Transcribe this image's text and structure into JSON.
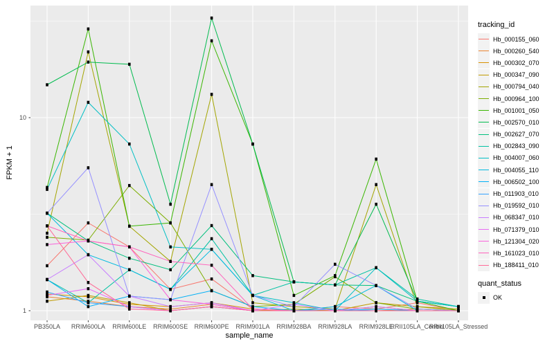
{
  "chart_data": {
    "type": "line",
    "title": "",
    "xlabel": "sample_name",
    "ylabel": "FPKM + 1",
    "yscale": "log10",
    "ylim": [
      0.89,
      38.0
    ],
    "yticks": [
      {
        "value": 1,
        "label": "1"
      },
      {
        "value": 10,
        "label": "10"
      }
    ],
    "minor_breaks": [
      3.1623,
      31.623
    ],
    "grid": true,
    "legend_position": "right",
    "legend_title": "tracking_id",
    "quant_legend": {
      "title": "quant_status",
      "items": [
        {
          "label": "OK",
          "marker": "black-square"
        }
      ]
    },
    "point_marker": "black-square",
    "panel_bg": "#EBEBEB",
    "grid_color": "#FFFFFF",
    "axis_text_color": "#4D4D4D",
    "categories": [
      "PB350LA",
      "RRIM600LA",
      "RRIM600LE",
      "RRIM600SE",
      "RRIM600PE",
      "RRIM901LA",
      "RRIM928BA",
      "RRIM928LA",
      "RRIM928LE",
      "RRII105LA_Control",
      "RRII105LA_Stressed"
    ],
    "series": [
      {
        "name": "Hb_000155_060",
        "color": "#F8766D",
        "values": [
          1.71,
          2.85,
          2.14,
          1.29,
          1.46,
          1.02,
          1.0,
          1.05,
          1.02,
          1.1,
          1.0
        ]
      },
      {
        "name": "Hb_000260_540",
        "color": "#EA8331",
        "values": [
          1.18,
          1.12,
          1.05,
          1.02,
          1.08,
          1.0,
          1.0,
          1.0,
          1.0,
          1.02,
          1.0
        ]
      },
      {
        "name": "Hb_000302_070",
        "color": "#D89000",
        "values": [
          1.22,
          1.18,
          1.08,
          1.05,
          1.1,
          1.02,
          1.0,
          1.0,
          1.05,
          1.0,
          1.0
        ]
      },
      {
        "name": "Hb_000347_090",
        "color": "#C09B00",
        "values": [
          1.12,
          1.2,
          1.1,
          1.0,
          1.05,
          1.0,
          1.02,
          1.0,
          1.1,
          1.05,
          1.02
        ]
      },
      {
        "name": "Hb_000794_040",
        "color": "#A3A500",
        "values": [
          2.52,
          21.9,
          2.74,
          1.8,
          13.2,
          1.1,
          1.05,
          1.02,
          4.5,
          1.05,
          1.0
        ]
      },
      {
        "name": "Hb_000964_100",
        "color": "#7CAE00",
        "values": [
          2.4,
          2.32,
          4.45,
          2.85,
          1.27,
          1.05,
          1.08,
          1.5,
          1.1,
          1.02,
          1.0
        ]
      },
      {
        "name": "Hb_001001_050",
        "color": "#39B600",
        "values": [
          4.35,
          28.8,
          2.74,
          2.85,
          25.0,
          7.3,
          1.2,
          1.52,
          6.1,
          1.12,
          1.0
        ]
      },
      {
        "name": "Hb_002570_010",
        "color": "#00BB4E",
        "values": [
          14.8,
          19.4,
          18.9,
          3.56,
          32.8,
          7.3,
          1.41,
          1.36,
          3.56,
          1.12,
          1.05
        ]
      },
      {
        "name": "Hb_002627_070",
        "color": "#00BF7D",
        "values": [
          3.2,
          2.3,
          1.87,
          1.63,
          2.76,
          1.52,
          1.41,
          1.36,
          1.35,
          1.12,
          1.05
        ]
      },
      {
        "name": "Hb_002843_090",
        "color": "#00C1A3",
        "values": [
          1.45,
          1.1,
          1.63,
          1.29,
          2.36,
          1.2,
          1.41,
          1.36,
          1.67,
          1.15,
          1.05
        ]
      },
      {
        "name": "Hb_004007_060",
        "color": "#00BFC4",
        "values": [
          4.25,
          12.0,
          7.3,
          2.14,
          2.08,
          1.2,
          1.1,
          1.0,
          1.67,
          1.12,
          1.05
        ]
      },
      {
        "name": "Hb_004055_110",
        "color": "#00BAE0",
        "values": [
          3.2,
          1.95,
          1.63,
          1.29,
          2.08,
          1.2,
          1.0,
          1.05,
          1.35,
          1.0,
          1.0
        ]
      },
      {
        "name": "Hb_006502_100",
        "color": "#00B0F6",
        "values": [
          1.45,
          1.05,
          1.19,
          1.14,
          1.27,
          1.05,
          1.0,
          1.0,
          1.02,
          1.0,
          1.0
        ]
      },
      {
        "name": "Hb_011903_010",
        "color": "#35A2FF",
        "values": [
          1.25,
          1.1,
          1.05,
          1.0,
          1.05,
          1.0,
          1.0,
          1.02,
          1.0,
          1.0,
          1.0
        ]
      },
      {
        "name": "Hb_019592_010",
        "color": "#9590FF",
        "values": [
          3.2,
          5.5,
          1.19,
          1.14,
          4.5,
          1.2,
          1.05,
          1.74,
          1.35,
          1.02,
          1.0
        ]
      },
      {
        "name": "Hb_068347_010",
        "color": "#C77CFF",
        "values": [
          1.45,
          1.95,
          1.19,
          1.05,
          1.1,
          1.0,
          1.08,
          1.0,
          1.05,
          1.0,
          1.0
        ]
      },
      {
        "name": "Hb_071379_010",
        "color": "#E76BF3",
        "values": [
          1.2,
          1.3,
          1.05,
          1.0,
          1.05,
          1.0,
          1.0,
          1.0,
          1.0,
          1.0,
          1.0
        ]
      },
      {
        "name": "Hb_121304_020",
        "color": "#FA62DB",
        "values": [
          2.2,
          2.3,
          2.14,
          1.14,
          1.08,
          1.0,
          1.0,
          1.0,
          1.0,
          1.0,
          1.0
        ]
      },
      {
        "name": "Hb_161023_010",
        "color": "#FF62BC",
        "values": [
          2.75,
          2.3,
          2.14,
          1.8,
          1.72,
          1.02,
          1.0,
          1.0,
          1.0,
          1.0,
          1.0
        ]
      },
      {
        "name": "Hb_188411_010",
        "color": "#FF6A98",
        "values": [
          2.75,
          1.4,
          1.02,
          1.0,
          1.05,
          1.0,
          1.0,
          1.0,
          1.0,
          1.0,
          1.0
        ]
      }
    ]
  }
}
